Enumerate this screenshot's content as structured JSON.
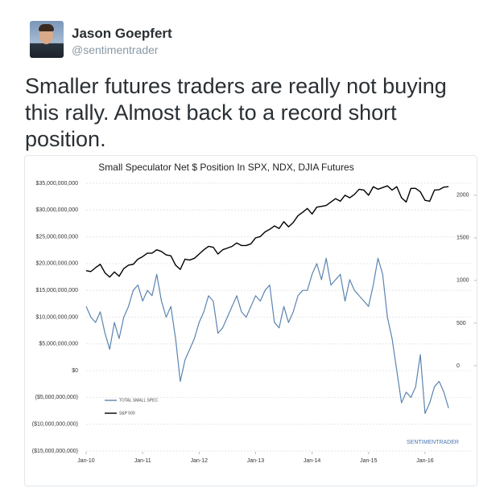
{
  "tweet": {
    "name": "Jason Goepfert",
    "handle": "@sentimentrader",
    "text": "Smaller futures traders are really not buying this rally. Almost back to a record short position."
  },
  "chart_data": {
    "type": "line",
    "title": "Small Speculator Net $ Position In SPX, NDX, DJIA Futures",
    "watermark": "SENTIMENTRADER",
    "x": [
      "2010-01",
      "2010-02",
      "2010-03",
      "2010-04",
      "2010-05",
      "2010-06",
      "2010-07",
      "2010-08",
      "2010-09",
      "2010-10",
      "2010-11",
      "2010-12",
      "2011-01",
      "2011-02",
      "2011-03",
      "2011-04",
      "2011-05",
      "2011-06",
      "2011-07",
      "2011-08",
      "2011-09",
      "2011-10",
      "2011-11",
      "2011-12",
      "2012-01",
      "2012-02",
      "2012-03",
      "2012-04",
      "2012-05",
      "2012-06",
      "2012-07",
      "2012-08",
      "2012-09",
      "2012-10",
      "2012-11",
      "2012-12",
      "2013-01",
      "2013-02",
      "2013-03",
      "2013-04",
      "2013-05",
      "2013-06",
      "2013-07",
      "2013-08",
      "2013-09",
      "2013-10",
      "2013-11",
      "2013-12",
      "2014-01",
      "2014-02",
      "2014-03",
      "2014-04",
      "2014-05",
      "2014-06",
      "2014-07",
      "2014-08",
      "2014-09",
      "2014-10",
      "2014-11",
      "2014-12",
      "2015-01",
      "2015-02",
      "2015-03",
      "2015-04",
      "2015-05",
      "2015-06",
      "2015-07",
      "2015-08",
      "2015-09",
      "2015-10",
      "2015-11",
      "2015-12",
      "2016-01",
      "2016-02",
      "2016-03",
      "2016-04",
      "2016-05",
      "2016-06"
    ],
    "series": [
      {
        "name": "TOTAL SMALL SPEC",
        "color": "#5b84b1",
        "values": [
          12000000000,
          10000000000,
          9000000000,
          11000000000,
          7000000000,
          4000000000,
          9000000000,
          6000000000,
          10000000000,
          12000000000,
          15000000000,
          16000000000,
          13000000000,
          15000000000,
          14000000000,
          18000000000,
          13000000000,
          10000000000,
          12000000000,
          6000000000,
          -2000000000,
          2000000000,
          4000000000,
          6000000000,
          9000000000,
          11000000000,
          14000000000,
          13000000000,
          7000000000,
          8000000000,
          10000000000,
          12000000000,
          14000000000,
          11000000000,
          10000000000,
          12000000000,
          14000000000,
          13000000000,
          15000000000,
          16000000000,
          9000000000,
          8000000000,
          12000000000,
          9000000000,
          11000000000,
          14000000000,
          15000000000,
          15000000000,
          18000000000,
          20000000000,
          17000000000,
          21000000000,
          16000000000,
          17000000000,
          18000000000,
          13000000000,
          17000000000,
          15000000000,
          14000000000,
          13000000000,
          12000000000,
          16000000000,
          21000000000,
          18000000000,
          10000000000,
          6000000000,
          0,
          -6000000000,
          -4000000000,
          -5000000000,
          -3000000000,
          3000000000,
          -8000000000,
          -6000000000,
          -3000000000,
          -2000000000,
          -4000000000,
          -7000000000
        ]
      },
      {
        "name": "S&P 500",
        "color": "#000000",
        "axis": "y2",
        "values": [
          1115,
          1105,
          1150,
          1190,
          1090,
          1040,
          1100,
          1050,
          1140,
          1180,
          1190,
          1250,
          1280,
          1320,
          1320,
          1360,
          1340,
          1300,
          1290,
          1180,
          1130,
          1250,
          1240,
          1260,
          1310,
          1360,
          1400,
          1390,
          1310,
          1360,
          1380,
          1400,
          1440,
          1410,
          1410,
          1430,
          1500,
          1515,
          1570,
          1600,
          1640,
          1610,
          1690,
          1630,
          1680,
          1760,
          1800,
          1845,
          1780,
          1860,
          1870,
          1880,
          1920,
          1960,
          1930,
          2000,
          1970,
          2010,
          2070,
          2060,
          2000,
          2100,
          2070,
          2090,
          2110,
          2060,
          2100,
          1970,
          1920,
          2080,
          2080,
          2040,
          1940,
          1930,
          2060,
          2065,
          2095,
          2100
        ]
      }
    ],
    "xlim": [
      "2010-01",
      "2016-07"
    ],
    "xticks": [
      {
        "value": "2010-01",
        "label": "Jan-10"
      },
      {
        "value": "2011-01",
        "label": "Jan-11"
      },
      {
        "value": "2012-01",
        "label": "Jan-12"
      },
      {
        "value": "2013-01",
        "label": "Jan-13"
      },
      {
        "value": "2014-01",
        "label": "Jan-14"
      },
      {
        "value": "2015-01",
        "label": "Jan-15"
      },
      {
        "value": "2016-01",
        "label": "Jan-16"
      }
    ],
    "ylim": [
      -15000000000,
      35000000000
    ],
    "yticks": [
      {
        "value": 35000000000,
        "label": "$35,000,000,000"
      },
      {
        "value": 30000000000,
        "label": "$30,000,000,000"
      },
      {
        "value": 25000000000,
        "label": "$25,000,000,000"
      },
      {
        "value": 20000000000,
        "label": "$20,000,000,000"
      },
      {
        "value": 15000000000,
        "label": "$15,000,000,000"
      },
      {
        "value": 10000000000,
        "label": "$10,000,000,000"
      },
      {
        "value": 5000000000,
        "label": "$5,000,000,000"
      },
      {
        "value": 0,
        "label": "$0"
      },
      {
        "value": -5000000000,
        "label": "($5,000,000,000)"
      },
      {
        "value": -10000000000,
        "label": "($10,000,000,000)"
      },
      {
        "value": -15000000000,
        "label": "($15,000,000,000)"
      }
    ],
    "y2lim": [
      -1000,
      2140
    ],
    "y2ticks": [
      0,
      500,
      1000,
      1500,
      2000
    ],
    "grid": true
  }
}
